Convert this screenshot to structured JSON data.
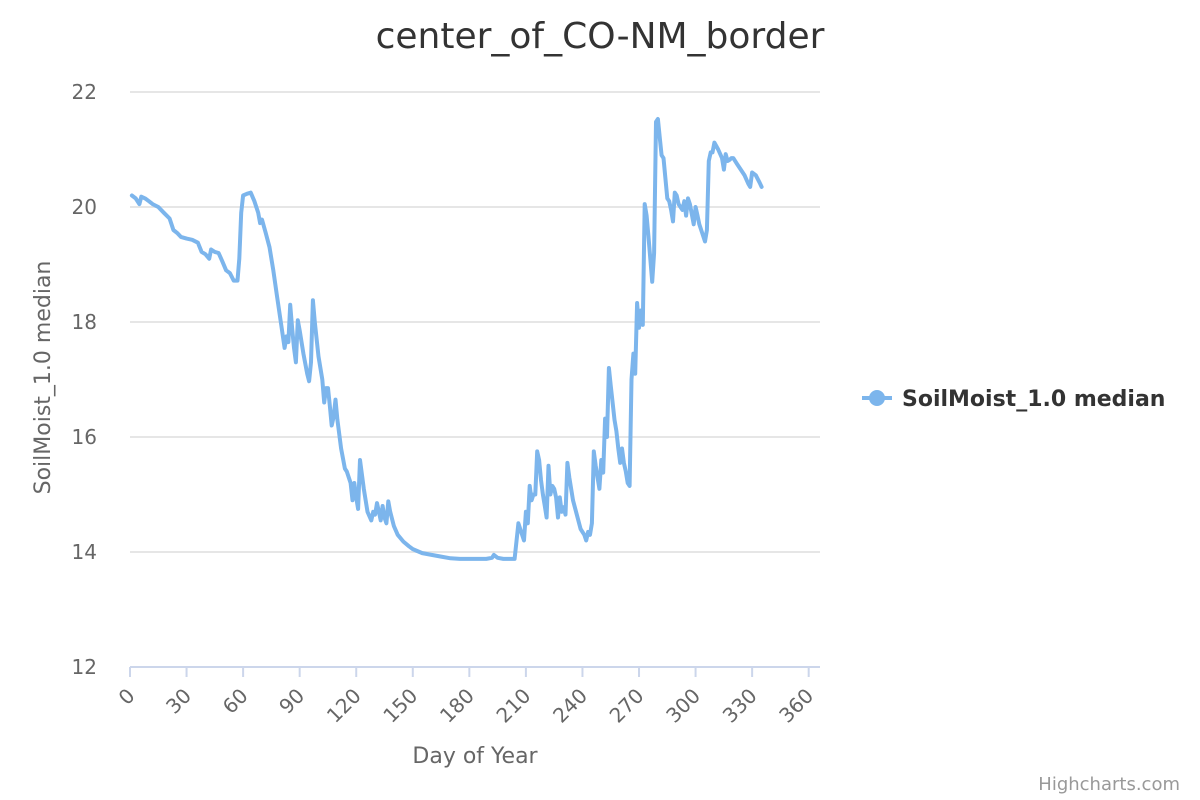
{
  "chart_data": {
    "type": "line",
    "title": "center_of_CO-NM_border",
    "xlabel": "Day of Year",
    "ylabel": "SoilMoist_1.0 median",
    "xlim": [
      0,
      366
    ],
    "ylim": [
      12,
      22
    ],
    "x_ticks": [
      0,
      30,
      60,
      90,
      120,
      150,
      180,
      210,
      240,
      270,
      300,
      330,
      360
    ],
    "y_ticks": [
      12,
      14,
      16,
      18,
      20,
      22
    ],
    "grid": true,
    "legend_position": "right",
    "series": [
      {
        "name": "SoilMoist_1.0 median",
        "color": "#7cb5ec",
        "points": [
          [
            1,
            20.2
          ],
          [
            3,
            20.15
          ],
          [
            5,
            20.05
          ],
          [
            6,
            20.18
          ],
          [
            8,
            20.15
          ],
          [
            10,
            20.1
          ],
          [
            12,
            20.05
          ],
          [
            15,
            20.0
          ],
          [
            18,
            19.9
          ],
          [
            21,
            19.8
          ],
          [
            23,
            19.6
          ],
          [
            25,
            19.55
          ],
          [
            27,
            19.48
          ],
          [
            30,
            19.45
          ],
          [
            33,
            19.43
          ],
          [
            36,
            19.38
          ],
          [
            38,
            19.22
          ],
          [
            40,
            19.18
          ],
          [
            42,
            19.1
          ],
          [
            43,
            19.26
          ],
          [
            45,
            19.22
          ],
          [
            47,
            19.2
          ],
          [
            49,
            19.05
          ],
          [
            51,
            18.9
          ],
          [
            53,
            18.85
          ],
          [
            55,
            18.72
          ],
          [
            57,
            18.72
          ],
          [
            58,
            19.1
          ],
          [
            59,
            19.9
          ],
          [
            60,
            20.2
          ],
          [
            62,
            20.23
          ],
          [
            64,
            20.25
          ],
          [
            66,
            20.1
          ],
          [
            68,
            19.9
          ],
          [
            69,
            19.72
          ],
          [
            70,
            19.78
          ],
          [
            72,
            19.55
          ],
          [
            74,
            19.3
          ],
          [
            76,
            18.9
          ],
          [
            78,
            18.45
          ],
          [
            80,
            18.0
          ],
          [
            82,
            17.55
          ],
          [
            83,
            17.75
          ],
          [
            84,
            17.65
          ],
          [
            85,
            18.3
          ],
          [
            86,
            17.9
          ],
          [
            87,
            17.55
          ],
          [
            88,
            17.3
          ],
          [
            89,
            18.03
          ],
          [
            90,
            17.85
          ],
          [
            92,
            17.45
          ],
          [
            94,
            17.1
          ],
          [
            95,
            16.97
          ],
          [
            96,
            17.3
          ],
          [
            97,
            18.38
          ],
          [
            98,
            18.0
          ],
          [
            100,
            17.4
          ],
          [
            102,
            17.0
          ],
          [
            103,
            16.6
          ],
          [
            104,
            16.85
          ],
          [
            105,
            16.85
          ],
          [
            106,
            16.55
          ],
          [
            107,
            16.2
          ],
          [
            108,
            16.35
          ],
          [
            109,
            16.65
          ],
          [
            110,
            16.3
          ],
          [
            112,
            15.8
          ],
          [
            114,
            15.45
          ],
          [
            115,
            15.4
          ],
          [
            117,
            15.2
          ],
          [
            118,
            14.9
          ],
          [
            119,
            15.2
          ],
          [
            120,
            14.95
          ],
          [
            121,
            14.75
          ],
          [
            122,
            15.6
          ],
          [
            124,
            15.1
          ],
          [
            126,
            14.7
          ],
          [
            128,
            14.55
          ],
          [
            129,
            14.7
          ],
          [
            130,
            14.65
          ],
          [
            131,
            14.85
          ],
          [
            132,
            14.7
          ],
          [
            133,
            14.55
          ],
          [
            134,
            14.8
          ],
          [
            135,
            14.6
          ],
          [
            136,
            14.5
          ],
          [
            137,
            14.88
          ],
          [
            138,
            14.7
          ],
          [
            140,
            14.45
          ],
          [
            142,
            14.3
          ],
          [
            145,
            14.18
          ],
          [
            148,
            14.1
          ],
          [
            150,
            14.05
          ],
          [
            155,
            13.98
          ],
          [
            160,
            13.95
          ],
          [
            165,
            13.92
          ],
          [
            170,
            13.89
          ],
          [
            175,
            13.88
          ],
          [
            180,
            13.88
          ],
          [
            185,
            13.88
          ],
          [
            189,
            13.88
          ],
          [
            192,
            13.9
          ],
          [
            193,
            13.95
          ],
          [
            195,
            13.9
          ],
          [
            198,
            13.88
          ],
          [
            201,
            13.88
          ],
          [
            204,
            13.88
          ],
          [
            206,
            14.5
          ],
          [
            207,
            14.4
          ],
          [
            208,
            14.3
          ],
          [
            209,
            14.2
          ],
          [
            210,
            14.7
          ],
          [
            211,
            14.5
          ],
          [
            212,
            15.15
          ],
          [
            213,
            14.9
          ],
          [
            214,
            15.0
          ],
          [
            215,
            15.0
          ],
          [
            216,
            15.75
          ],
          [
            217,
            15.6
          ],
          [
            218,
            15.25
          ],
          [
            219,
            15.0
          ],
          [
            220,
            14.8
          ],
          [
            221,
            14.6
          ],
          [
            222,
            15.5
          ],
          [
            223,
            15.0
          ],
          [
            224,
            15.15
          ],
          [
            225,
            15.1
          ],
          [
            226,
            14.95
          ],
          [
            227,
            14.6
          ],
          [
            228,
            14.95
          ],
          [
            229,
            14.7
          ],
          [
            230,
            14.78
          ],
          [
            231,
            14.65
          ],
          [
            232,
            15.55
          ],
          [
            233,
            15.3
          ],
          [
            235,
            14.9
          ],
          [
            237,
            14.65
          ],
          [
            239,
            14.4
          ],
          [
            241,
            14.3
          ],
          [
            242,
            14.2
          ],
          [
            243,
            14.35
          ],
          [
            244,
            14.3
          ],
          [
            245,
            14.5
          ],
          [
            246,
            15.75
          ],
          [
            247,
            15.5
          ],
          [
            248,
            15.3
          ],
          [
            249,
            15.1
          ],
          [
            250,
            15.6
          ],
          [
            251,
            15.38
          ],
          [
            252,
            16.32
          ],
          [
            253,
            16.0
          ],
          [
            254,
            17.2
          ],
          [
            255,
            16.9
          ],
          [
            256,
            16.6
          ],
          [
            257,
            16.3
          ],
          [
            258,
            16.1
          ],
          [
            259,
            15.8
          ],
          [
            260,
            15.55
          ],
          [
            261,
            15.8
          ],
          [
            262,
            15.55
          ],
          [
            263,
            15.4
          ],
          [
            264,
            15.2
          ],
          [
            265,
            15.15
          ],
          [
            266,
            17.0
          ],
          [
            267,
            17.45
          ],
          [
            268,
            17.1
          ],
          [
            269,
            18.33
          ],
          [
            270,
            17.9
          ],
          [
            271,
            18.2
          ],
          [
            272,
            17.95
          ],
          [
            273,
            20.05
          ],
          [
            274,
            19.85
          ],
          [
            275,
            19.5
          ],
          [
            276,
            19.1
          ],
          [
            277,
            18.7
          ],
          [
            278,
            19.2
          ],
          [
            279,
            21.48
          ],
          [
            280,
            21.53
          ],
          [
            281,
            21.2
          ],
          [
            282,
            20.9
          ],
          [
            283,
            20.85
          ],
          [
            284,
            20.5
          ],
          [
            285,
            20.15
          ],
          [
            286,
            20.1
          ],
          [
            287,
            19.95
          ],
          [
            288,
            19.75
          ],
          [
            289,
            20.25
          ],
          [
            290,
            20.2
          ],
          [
            291,
            20.05
          ],
          [
            292,
            20.0
          ],
          [
            293,
            19.95
          ],
          [
            294,
            20.1
          ],
          [
            295,
            19.85
          ],
          [
            296,
            20.15
          ],
          [
            297,
            20.05
          ],
          [
            299,
            19.7
          ],
          [
            300,
            20.0
          ],
          [
            301,
            19.85
          ],
          [
            302,
            19.7
          ],
          [
            303,
            19.6
          ],
          [
            304,
            19.5
          ],
          [
            305,
            19.4
          ],
          [
            306,
            19.6
          ],
          [
            307,
            20.8
          ],
          [
            308,
            20.95
          ],
          [
            309,
            20.95
          ],
          [
            310,
            21.12
          ],
          [
            312,
            21.0
          ],
          [
            314,
            20.85
          ],
          [
            315,
            20.65
          ],
          [
            316,
            20.92
          ],
          [
            317,
            20.8
          ],
          [
            318,
            20.82
          ],
          [
            319,
            20.85
          ],
          [
            320,
            20.85
          ],
          [
            322,
            20.75
          ],
          [
            324,
            20.65
          ],
          [
            326,
            20.55
          ],
          [
            328,
            20.4
          ],
          [
            329,
            20.35
          ],
          [
            330,
            20.6
          ],
          [
            332,
            20.55
          ],
          [
            334,
            20.42
          ],
          [
            335,
            20.35
          ]
        ]
      }
    ],
    "credits": "Highcharts.com"
  }
}
